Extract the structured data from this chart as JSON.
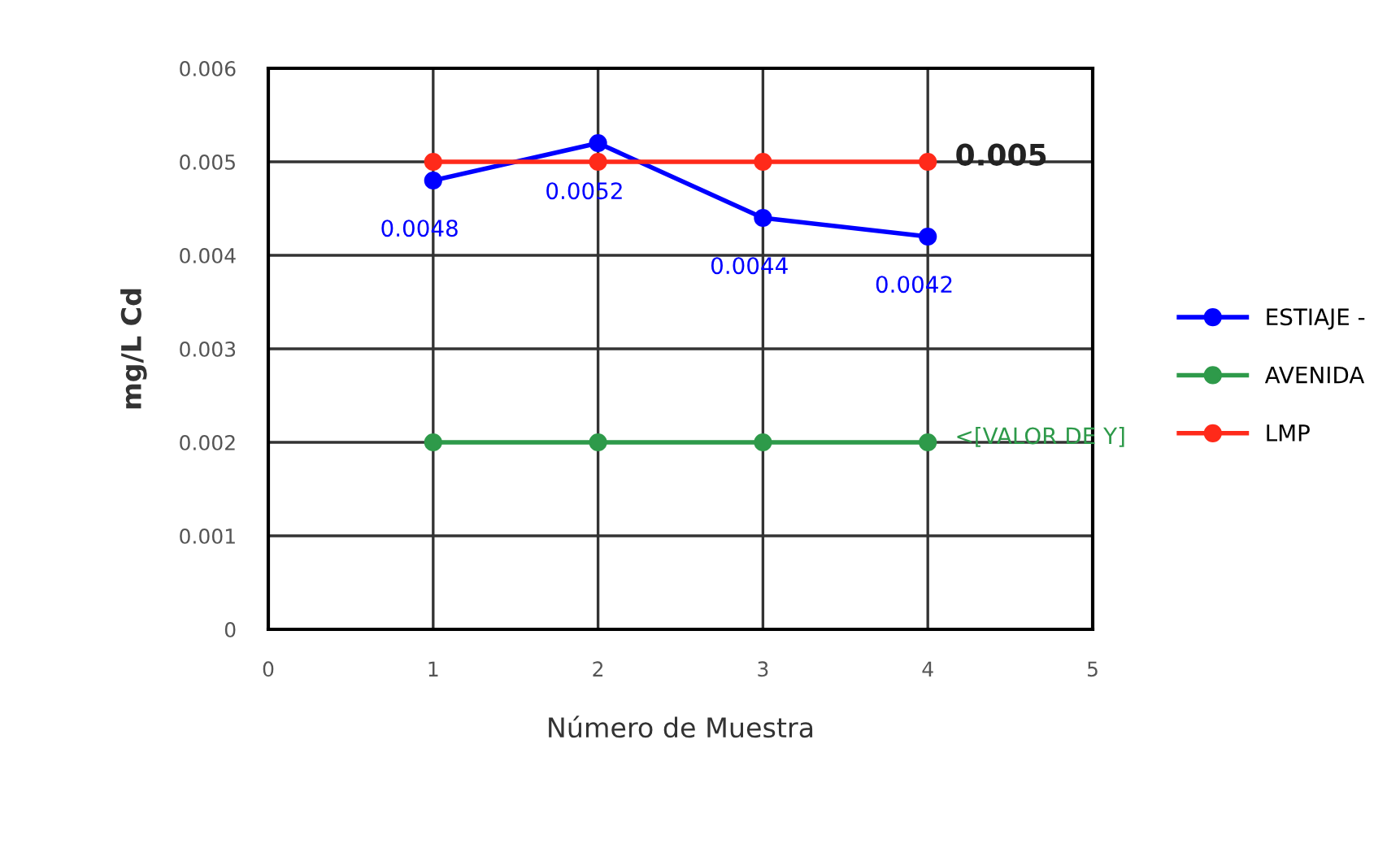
{
  "chart_data": {
    "type": "line",
    "xlabel": "Número de Muestra",
    "ylabel": "mg/L Cd",
    "xlim": [
      0,
      5
    ],
    "xticks": [
      0,
      1,
      2,
      3,
      4,
      5
    ],
    "ylim": [
      0,
      0.006
    ],
    "yticks": [
      0,
      0.001,
      0.002,
      0.003,
      0.004,
      0.005,
      0.006
    ],
    "grid": true,
    "legend": "right",
    "marker": "circle",
    "series": [
      {
        "name": "ESTIAJE -",
        "color": "#0000ff",
        "x": [
          1,
          2,
          3,
          4
        ],
        "values": [
          0.0048,
          0.0052,
          0.0044,
          0.0042
        ],
        "value_labels": [
          "0.0048",
          "0.0052",
          "0.0044",
          "0.0042"
        ]
      },
      {
        "name": "AVENIDA",
        "color": "#2e9a4a",
        "x": [
          1,
          2,
          3,
          4
        ],
        "values": [
          0.002,
          0.002,
          0.002,
          0.002
        ],
        "value_labels": [
          null,
          null,
          null,
          "<[VALOR DE Y]"
        ]
      },
      {
        "name": "LMP",
        "color": "#ff2a1a",
        "x": [
          1,
          2,
          3,
          4
        ],
        "values": [
          0.005,
          0.005,
          0.005,
          0.005
        ],
        "value_labels": [
          null,
          null,
          null,
          "0.005"
        ]
      }
    ]
  }
}
